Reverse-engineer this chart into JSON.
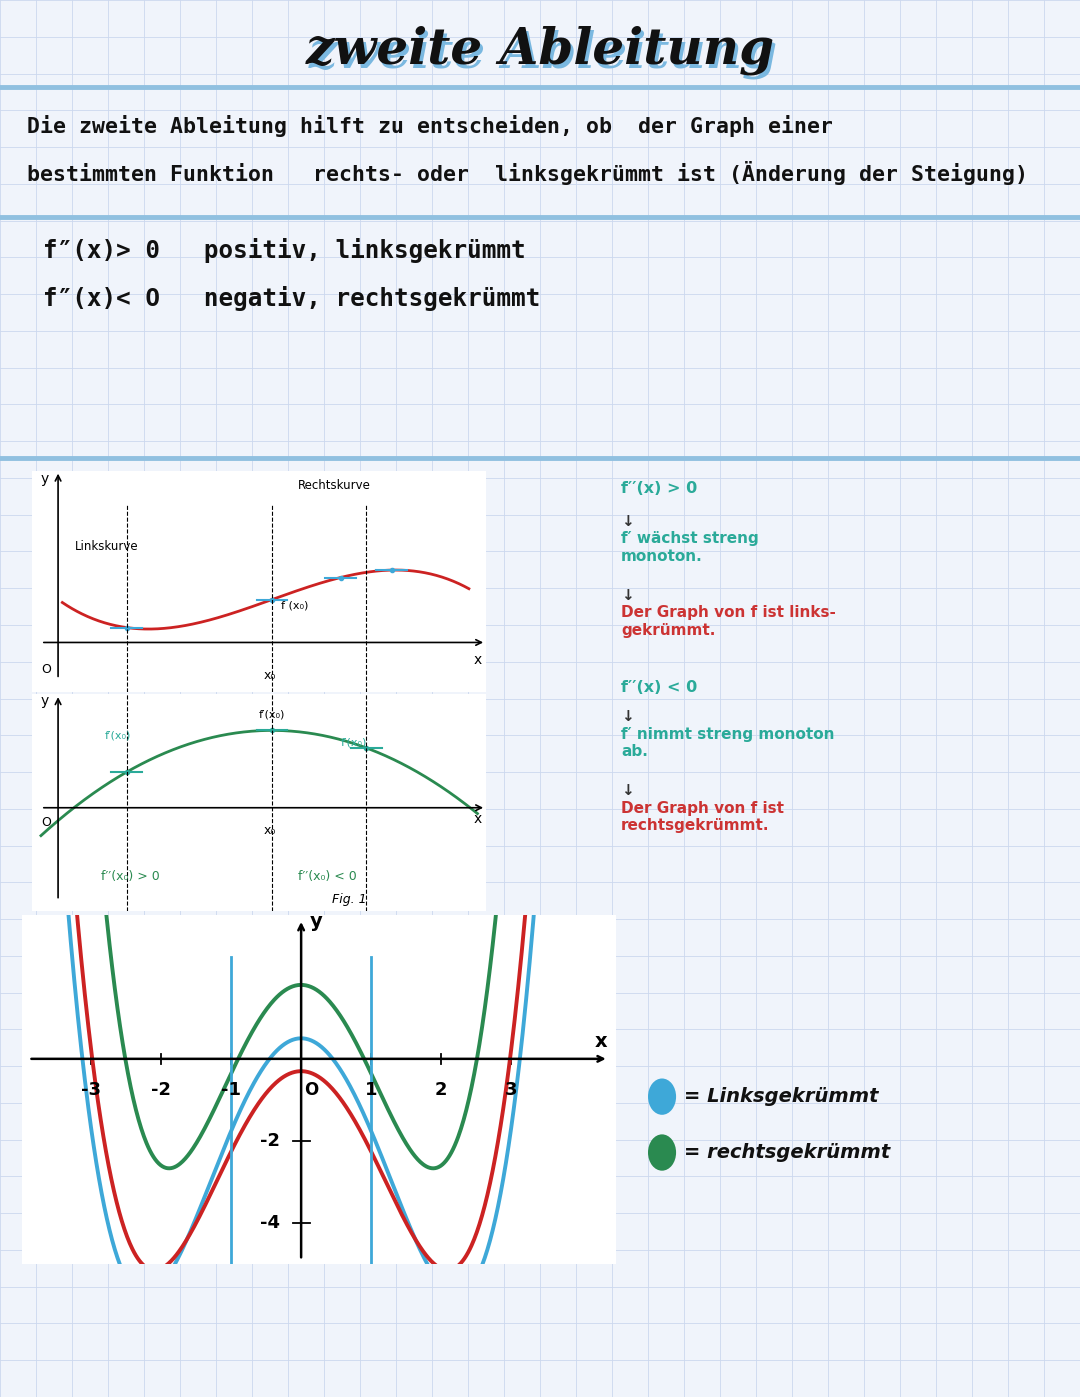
{
  "bg_color": "#f0f4fb",
  "grid_color": "#ccd8ee",
  "title_shadow_color": "#7ab8e0",
  "title_color": "#111111",
  "separator_color": "#90c0e0",
  "curve_blue": "#3ea8d8",
  "curve_red": "#cc2222",
  "curve_green": "#2a8a50",
  "curve_teal": "#2aaa99",
  "text_color": "#111111",
  "chain_teal": "#2aaa99",
  "chain_red": "#cc3333",
  "chain_black": "#333333",
  "line1": "Die zweite Ableitung hilft zu entscheiden, ob  der Graph einer",
  "line2": "bestimmten Funktion   rechts- oder  linksgekrümmt ist (Änderung der Steigung)",
  "rule1": "f″(x)> 0   positiv, linksgekrümmt",
  "rule2": "f″(x)< O   negativ, rechtsgekrümmt"
}
